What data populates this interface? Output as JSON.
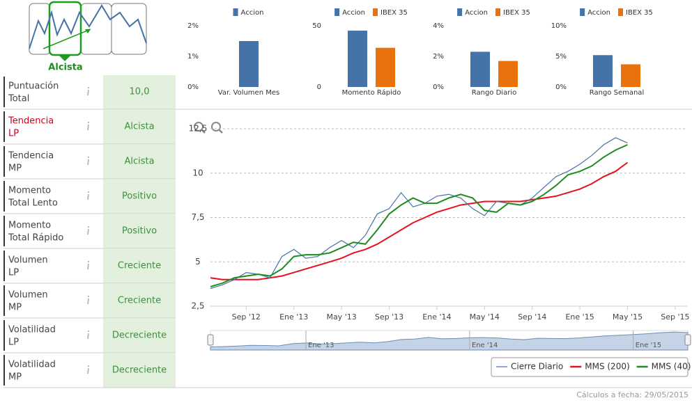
{
  "trend": {
    "label": "Alcista"
  },
  "indicators": {
    "rows": [
      {
        "label": [
          "Puntuación",
          "Total"
        ],
        "value": "10,0"
      },
      {
        "label": [
          "Tendencia",
          "LP"
        ],
        "value": "Alcista"
      },
      {
        "label": [
          "Tendencia",
          "MP"
        ],
        "value": "Alcista"
      },
      {
        "label": [
          "Momento",
          "Total Lento"
        ],
        "value": "Positivo"
      },
      {
        "label": [
          "Momento",
          "Total Rápido"
        ],
        "value": "Positivo"
      },
      {
        "label": [
          "Volumen",
          "LP"
        ],
        "value": "Creciente"
      },
      {
        "label": [
          "Volumen",
          "MP"
        ],
        "value": "Creciente"
      },
      {
        "label": [
          "Volatilidad",
          "LP"
        ],
        "value": "Decreciente"
      },
      {
        "label": [
          "Volatilidad",
          "MP"
        ],
        "value": "Decreciente"
      }
    ]
  },
  "chart_data": [
    {
      "type": "bar",
      "categories": [
        "Var. Volumen Mes"
      ],
      "series": [
        {
          "name": "Accion",
          "color": "#4572a7",
          "values": [
            1.5
          ]
        }
      ],
      "ylim": [
        0,
        2
      ],
      "yticks": [
        {
          "value": 0,
          "label": "0%"
        },
        {
          "value": 1,
          "label": "1%"
        },
        {
          "value": 2,
          "label": "2%"
        }
      ]
    },
    {
      "type": "bar",
      "categories": [
        "Momento Rápido"
      ],
      "series": [
        {
          "name": "Accion",
          "color": "#4572a7",
          "values": [
            46
          ]
        },
        {
          "name": "IBEX 35",
          "color": "#e8720c",
          "values": [
            32
          ]
        }
      ],
      "ylim": [
        0,
        50
      ],
      "yticks": [
        0,
        50
      ]
    },
    {
      "type": "bar",
      "categories": [
        "Rango Diario"
      ],
      "series": [
        {
          "name": "Accion",
          "color": "#4572a7",
          "values": [
            2.3
          ]
        },
        {
          "name": "IBEX 35",
          "color": "#e8720c",
          "values": [
            1.7
          ]
        }
      ],
      "ylim": [
        0,
        4
      ],
      "yticks": [
        {
          "value": 0,
          "label": "0%"
        },
        {
          "value": 2,
          "label": "2%"
        },
        {
          "value": 4,
          "label": "4%"
        }
      ]
    },
    {
      "type": "bar",
      "categories": [
        "Rango Semanal"
      ],
      "series": [
        {
          "name": "Accion",
          "color": "#4572a7",
          "values": [
            5.2
          ]
        },
        {
          "name": "IBEX 35",
          "color": "#e8720c",
          "values": [
            3.7
          ]
        }
      ],
      "ylim": [
        0,
        10
      ],
      "yticks": [
        {
          "value": 0,
          "label": "0%"
        },
        {
          "value": 5,
          "label": "5%"
        },
        {
          "value": 10,
          "label": "10%"
        }
      ]
    },
    {
      "type": "line",
      "x": [
        "2012-06",
        "2012-07",
        "2012-08",
        "2012-09",
        "2012-10",
        "2012-11",
        "2012-12",
        "2013-01",
        "2013-02",
        "2013-03",
        "2013-04",
        "2013-05",
        "2013-06",
        "2013-07",
        "2013-08",
        "2013-09",
        "2013-10",
        "2013-11",
        "2013-12",
        "2014-01",
        "2014-02",
        "2014-03",
        "2014-04",
        "2014-05",
        "2014-06",
        "2014-07",
        "2014-08",
        "2014-09",
        "2014-10",
        "2014-11",
        "2014-12",
        "2015-01",
        "2015-02",
        "2015-03",
        "2015-04",
        "2015-05"
      ],
      "series": [
        {
          "name": "Cierre Diario",
          "color": "#4572a7",
          "values": [
            3.5,
            3.7,
            4.0,
            4.4,
            4.3,
            4.1,
            5.3,
            5.7,
            5.2,
            5.3,
            5.8,
            6.2,
            5.8,
            6.5,
            7.7,
            8.0,
            8.9,
            8.1,
            8.3,
            8.7,
            8.8,
            8.6,
            8.0,
            7.6,
            8.4,
            8.3,
            8.2,
            8.6,
            9.2,
            9.8,
            10.1,
            10.5,
            11.0,
            11.6,
            12.0,
            11.7
          ]
        },
        {
          "name": "MMS (200)",
          "color": "#e8101f",
          "values": [
            4.1,
            4.0,
            4.0,
            4.0,
            4.0,
            4.1,
            4.2,
            4.4,
            4.6,
            4.8,
            5.0,
            5.2,
            5.5,
            5.7,
            6.0,
            6.4,
            6.8,
            7.2,
            7.5,
            7.8,
            8.0,
            8.2,
            8.3,
            8.4,
            8.4,
            8.4,
            8.4,
            8.5,
            8.6,
            8.7,
            8.9,
            9.1,
            9.4,
            9.8,
            10.1,
            10.6
          ]
        },
        {
          "name": "MMS (40)",
          "color": "#1e8c1e",
          "values": [
            3.6,
            3.8,
            4.1,
            4.2,
            4.3,
            4.2,
            4.6,
            5.3,
            5.4,
            5.4,
            5.5,
            5.8,
            6.1,
            6.0,
            6.8,
            7.7,
            8.2,
            8.6,
            8.3,
            8.3,
            8.6,
            8.8,
            8.6,
            7.9,
            7.8,
            8.3,
            8.2,
            8.4,
            8.8,
            9.3,
            9.9,
            10.1,
            10.4,
            10.9,
            11.3,
            11.6
          ]
        }
      ],
      "xlim": [
        "2012-06",
        "2015-10"
      ],
      "xticks": [
        {
          "value": "2012-09",
          "label": "Sep '12"
        },
        {
          "value": "2013-01",
          "label": "Ene '13"
        },
        {
          "value": "2013-05",
          "label": "May '13"
        },
        {
          "value": "2013-09",
          "label": "Sep '13"
        },
        {
          "value": "2014-01",
          "label": "Ene '14"
        },
        {
          "value": "2014-05",
          "label": "May '14"
        },
        {
          "value": "2014-09",
          "label": "Sep '14"
        },
        {
          "value": "2015-01",
          "label": "Ene '15"
        },
        {
          "value": "2015-05",
          "label": "May '15"
        },
        {
          "value": "2015-09",
          "label": "Sep '15"
        }
      ],
      "ylim": [
        2.5,
        12.5
      ],
      "yticks": [
        {
          "value": 2.5,
          "label": "2,5"
        },
        5,
        {
          "value": 7.5,
          "label": "7,5"
        },
        10,
        {
          "value": 12.5,
          "label": "12,5"
        }
      ],
      "grid": true,
      "navigator_xlim": [
        "2012-06",
        "2015-05"
      ],
      "navigator_ticks": [
        {
          "value": "2013-01",
          "label": "Ene '13"
        },
        {
          "value": "2014-01",
          "label": "Ene '14"
        },
        {
          "value": "2015-01",
          "label": "Ene '15"
        }
      ]
    }
  ],
  "footer": {
    "text": "Cálculos a fecha: 29/05/2015"
  }
}
